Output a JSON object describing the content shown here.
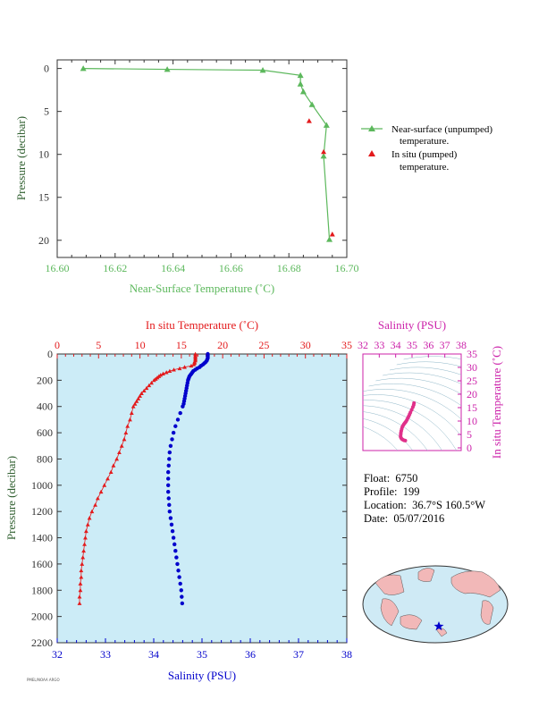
{
  "info": {
    "float_label": "Float:",
    "float": "6750",
    "profile_label": "Profile:",
    "profile": "199",
    "location_label": "Location:",
    "location": "36.7°S  160.5°W",
    "date_label": "Date:",
    "date": "05/07/2016"
  },
  "footer": "PMEL/NOAA ARGO",
  "colors": {
    "green": "#5cb85c",
    "red": "#e31a1c",
    "blue": "#0000cc",
    "magenta": "#cc22aa",
    "panel": "#ccecf7"
  },
  "chart_data": [
    {
      "type": "line",
      "xlabel": "Near-Surface Temperature (˚C)",
      "ylabel": "Pressure (decibar)",
      "xlim": [
        16.6,
        16.7
      ],
      "ylim": [
        22,
        -1
      ],
      "xticks": [
        "16.60",
        "16.62",
        "16.64",
        "16.66",
        "16.68",
        "16.70"
      ],
      "yticks": [
        "0",
        "5",
        "10",
        "15",
        "20"
      ],
      "series": [
        {
          "name": "Near-surface (unpumped) temperature.",
          "x": [
            16.609,
            16.638,
            16.671,
            16.684,
            16.684,
            16.685,
            16.688,
            16.693,
            16.692,
            16.694
          ],
          "y": [
            0.0,
            0.1,
            0.2,
            0.8,
            1.8,
            2.7,
            4.2,
            6.6,
            10.2,
            19.9
          ]
        },
        {
          "name": "In situ (pumped) temperature.",
          "x": [
            16.687,
            16.692,
            16.695
          ],
          "y": [
            6.1,
            9.7,
            19.3
          ]
        }
      ],
      "legend": [
        "Near-surface (unpumped)",
        "temperature.",
        "In situ (pumped)",
        "temperature."
      ]
    },
    {
      "type": "scatter",
      "title_top": "In situ Temperature (˚C)",
      "xlabel": "Salinity (PSU)",
      "ylabel": "Pressure (decibar)",
      "temp_lim": [
        0,
        35
      ],
      "sal_lim": [
        32,
        38
      ],
      "ylim": [
        2200,
        0
      ],
      "temp_ticks": [
        "0",
        "5",
        "10",
        "15",
        "20",
        "25",
        "30",
        "35"
      ],
      "sal_ticks": [
        "32",
        "33",
        "34",
        "35",
        "36",
        "37",
        "38"
      ],
      "yticks": [
        "0",
        "200",
        "400",
        "600",
        "800",
        "1000",
        "1200",
        "1400",
        "1600",
        "1800",
        "2000",
        "2200"
      ],
      "temperature": {
        "p": [
          0,
          10,
          20,
          30,
          40,
          50,
          60,
          70,
          80,
          90,
          100,
          110,
          120,
          130,
          140,
          150,
          160,
          170,
          180,
          190,
          200,
          220,
          240,
          260,
          280,
          300,
          320,
          340,
          360,
          380,
          400,
          450,
          500,
          550,
          600,
          650,
          700,
          750,
          800,
          850,
          900,
          950,
          1000,
          1050,
          1100,
          1150,
          1200,
          1250,
          1300,
          1350,
          1400,
          1450,
          1500,
          1550,
          1600,
          1650,
          1700,
          1750,
          1800,
          1850,
          1900
        ],
        "t": [
          16.7,
          16.7,
          16.7,
          16.7,
          16.7,
          16.7,
          16.6,
          16.6,
          16.5,
          16.2,
          15.4,
          14.8,
          14.1,
          13.6,
          13.2,
          12.8,
          12.5,
          12.3,
          12.1,
          11.9,
          11.7,
          11.4,
          11.1,
          10.8,
          10.5,
          10.2,
          10.0,
          9.8,
          9.6,
          9.4,
          9.2,
          9.0,
          8.8,
          8.5,
          8.3,
          8.1,
          7.8,
          7.5,
          7.2,
          6.8,
          6.5,
          6.1,
          5.7,
          5.3,
          4.9,
          4.6,
          4.2,
          3.9,
          3.7,
          3.5,
          3.4,
          3.3,
          3.2,
          3.1,
          3.0,
          2.9,
          2.9,
          2.8,
          2.8,
          2.7,
          2.7
        ]
      },
      "salinity": {
        "p": [
          0,
          10,
          20,
          30,
          40,
          50,
          60,
          70,
          80,
          90,
          100,
          110,
          120,
          130,
          140,
          150,
          160,
          170,
          180,
          190,
          200,
          220,
          240,
          260,
          280,
          300,
          320,
          340,
          360,
          380,
          400,
          450,
          500,
          550,
          600,
          650,
          700,
          750,
          800,
          850,
          900,
          950,
          1000,
          1050,
          1100,
          1150,
          1200,
          1250,
          1300,
          1350,
          1400,
          1450,
          1500,
          1550,
          1600,
          1650,
          1700,
          1750,
          1800,
          1850,
          1900
        ],
        "s": [
          35.12,
          35.12,
          35.12,
          35.12,
          35.11,
          35.1,
          35.08,
          35.05,
          35.02,
          34.98,
          34.95,
          34.9,
          34.86,
          34.82,
          34.8,
          34.78,
          34.76,
          34.74,
          34.73,
          34.72,
          34.71,
          34.7,
          34.69,
          34.68,
          34.67,
          34.66,
          34.65,
          34.64,
          34.63,
          34.62,
          34.6,
          34.55,
          34.5,
          34.45,
          34.41,
          34.38,
          34.35,
          34.33,
          34.32,
          34.31,
          34.3,
          34.3,
          34.3,
          34.3,
          34.31,
          34.32,
          34.33,
          34.35,
          34.37,
          34.39,
          34.41,
          34.43,
          34.45,
          34.47,
          34.49,
          34.51,
          34.53,
          34.55,
          34.57,
          34.58,
          34.59
        ]
      }
    },
    {
      "type": "scatter",
      "title": "Salinity (PSU)",
      "ylabel": "In situ Temperature (˚C)",
      "xlim": [
        32,
        38
      ],
      "ylim": [
        -1,
        35
      ],
      "xticks": [
        "32",
        "33",
        "34",
        "35",
        "36",
        "37",
        "38"
      ],
      "yticks": [
        "0",
        "5",
        "10",
        "15",
        "20",
        "25",
        "30",
        "35"
      ],
      "points_s": [
        35.12,
        35.1,
        35.05,
        34.98,
        34.9,
        34.85,
        34.8,
        34.75,
        34.7,
        34.65,
        34.6,
        34.55,
        34.5,
        34.45,
        34.4,
        34.37,
        34.34,
        34.32,
        34.31,
        34.3,
        34.33,
        34.38,
        34.45,
        34.52,
        34.59
      ],
      "points_t": [
        16.7,
        16.0,
        15.2,
        14.2,
        13.2,
        12.5,
        11.8,
        11.2,
        10.6,
        10.0,
        9.6,
        9.2,
        8.8,
        8.3,
        7.7,
        7.0,
        6.3,
        5.6,
        4.9,
        4.2,
        3.7,
        3.3,
        3.0,
        2.8,
        2.7
      ]
    }
  ]
}
